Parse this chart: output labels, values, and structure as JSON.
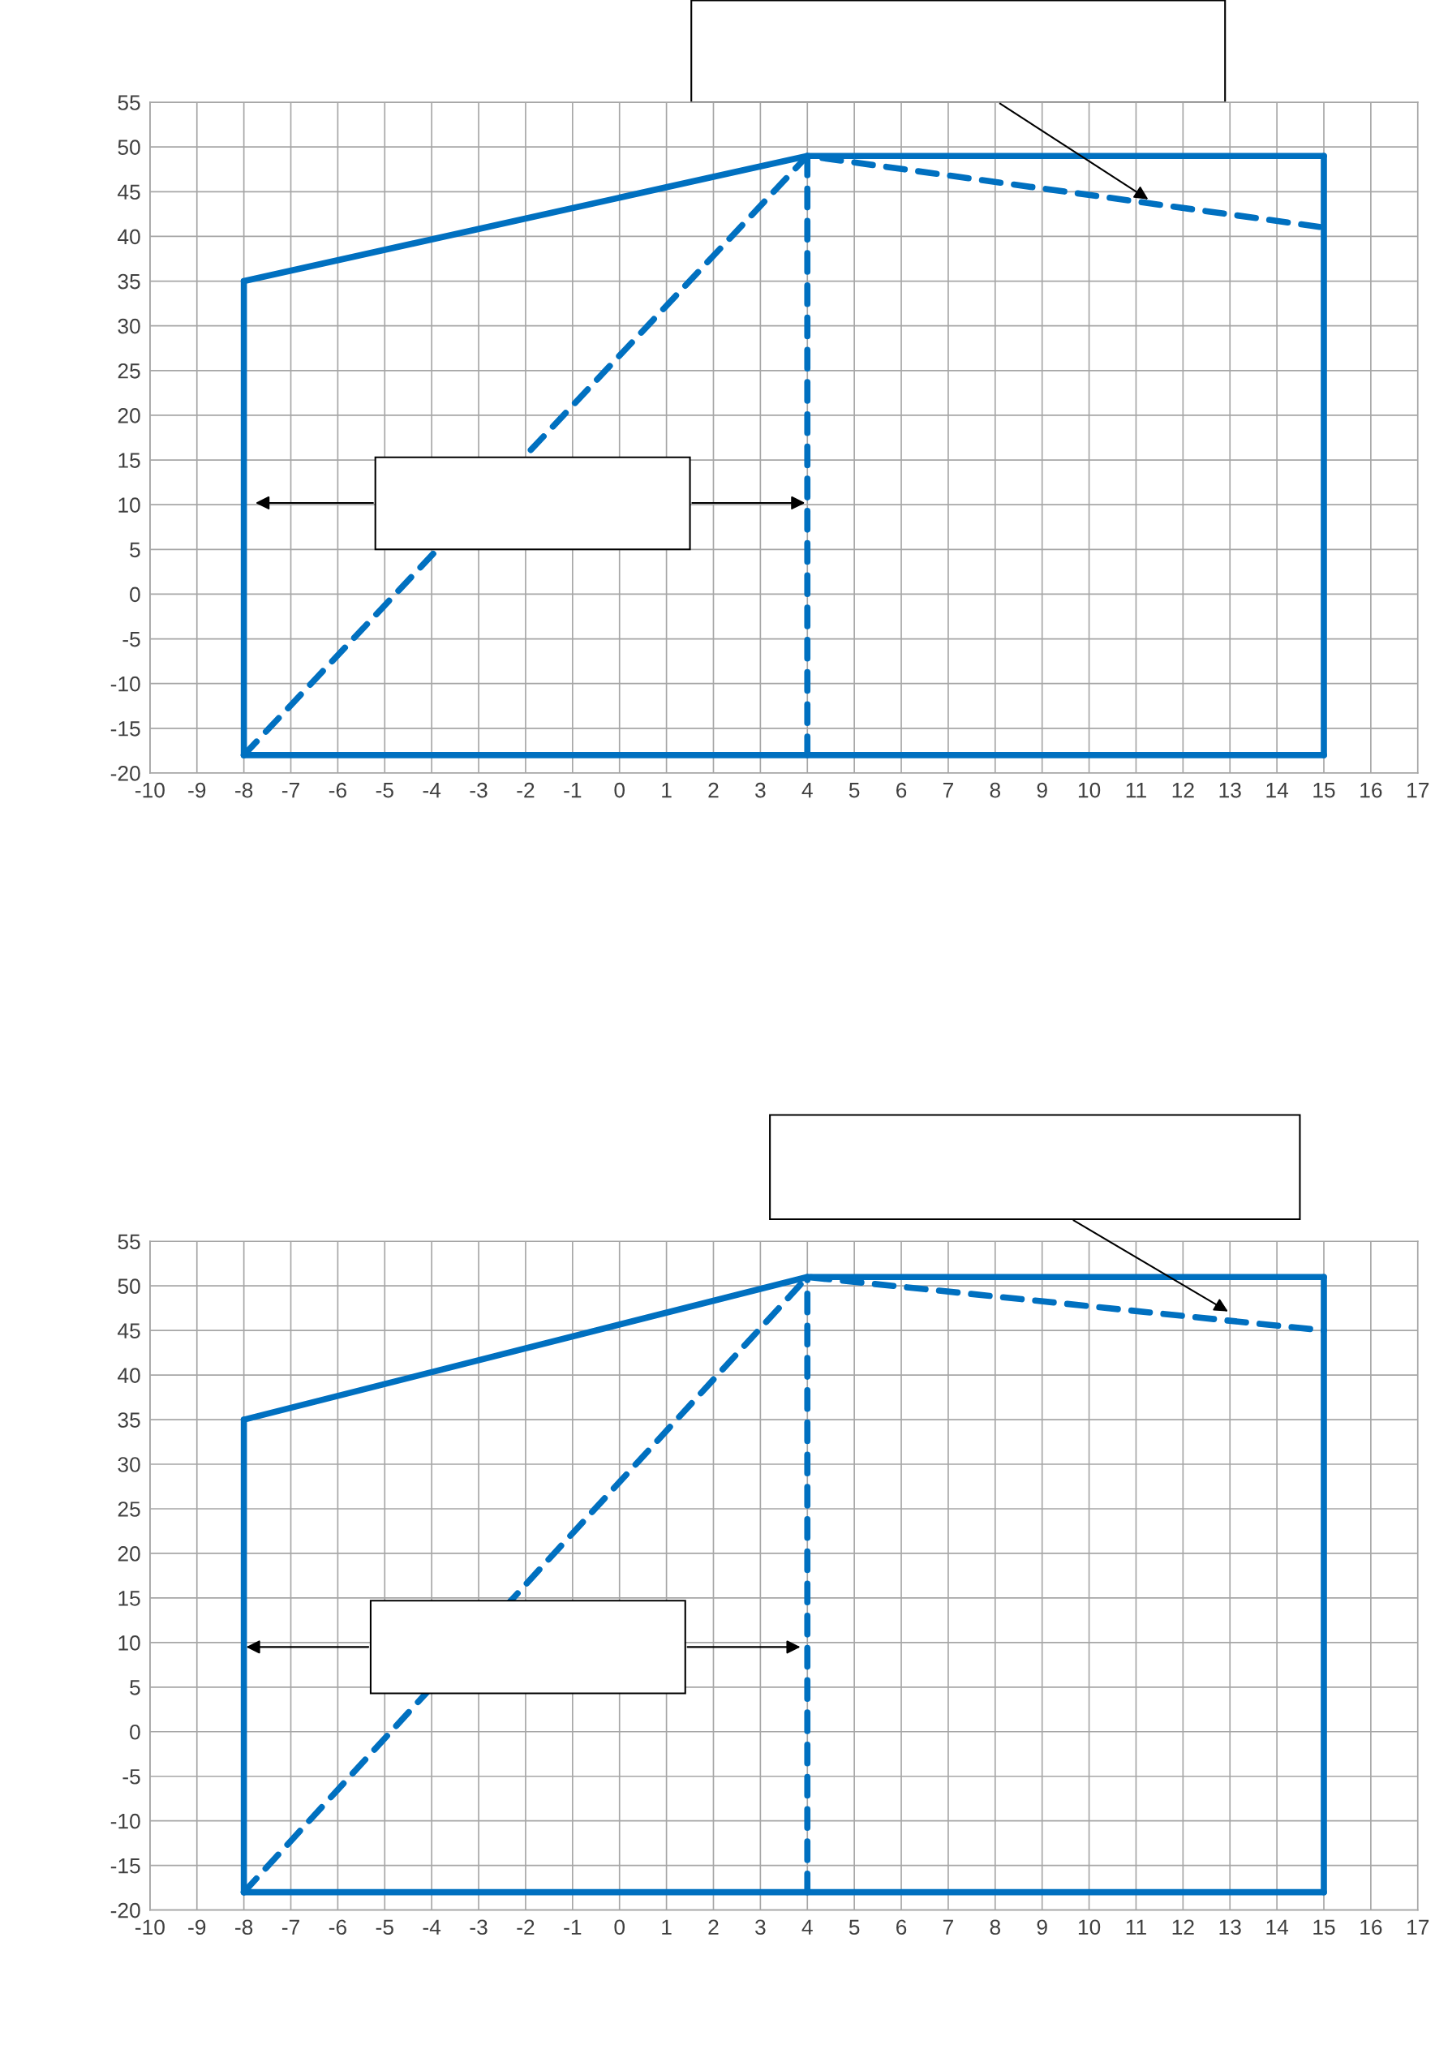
{
  "chart_data": [
    {
      "type": "line",
      "xlim": [
        -10,
        17
      ],
      "ylim": [
        -20,
        55
      ],
      "xticks": [
        -10,
        -9,
        -8,
        -7,
        -6,
        -5,
        -4,
        -3,
        -2,
        -1,
        0,
        1,
        2,
        3,
        4,
        5,
        6,
        7,
        8,
        9,
        10,
        11,
        12,
        13,
        14,
        15,
        16,
        17
      ],
      "yticks": [
        -20,
        -15,
        -10,
        -5,
        0,
        5,
        10,
        15,
        20,
        25,
        30,
        35,
        40,
        45,
        50,
        55
      ],
      "grid": true,
      "marker": "none",
      "series": [
        {
          "color": "#0070c0",
          "line_style": "solid",
          "x": [
            -8,
            4,
            15
          ],
          "values": [
            35,
            49,
            49
          ]
        },
        {
          "color": "#0070c0",
          "line_style": "solid",
          "x": [
            -8,
            15
          ],
          "values": [
            -18,
            -18
          ]
        },
        {
          "color": "#0070c0",
          "line_style": "dashed",
          "x": [
            -8,
            4,
            15
          ],
          "values": [
            -18,
            49,
            41
          ]
        }
      ],
      "ref_lines": [
        {
          "axis": "x",
          "value": -8,
          "color": "#0070c0",
          "line_style": "solid"
        },
        {
          "axis": "x",
          "value": 4,
          "color": "#0070c0",
          "line_style": "dashed"
        },
        {
          "axis": "x",
          "value": 15,
          "color": "#0070c0",
          "line_style": "solid"
        }
      ]
    },
    {
      "type": "line",
      "xlim": [
        -10,
        17
      ],
      "ylim": [
        -20,
        55
      ],
      "xticks": [
        -10,
        -9,
        -8,
        -7,
        -6,
        -5,
        -4,
        -3,
        -2,
        -1,
        0,
        1,
        2,
        3,
        4,
        5,
        6,
        7,
        8,
        9,
        10,
        11,
        12,
        13,
        14,
        15,
        16,
        17
      ],
      "yticks": [
        -20,
        -15,
        -10,
        -5,
        0,
        5,
        10,
        15,
        20,
        25,
        30,
        35,
        40,
        45,
        50,
        55
      ],
      "grid": true,
      "marker": "none",
      "series": [
        {
          "color": "#0070c0",
          "line_style": "solid",
          "x": [
            -8,
            4,
            15
          ],
          "values": [
            35,
            51,
            51
          ]
        },
        {
          "color": "#0070c0",
          "line_style": "solid",
          "x": [
            -8,
            15
          ],
          "values": [
            -18,
            -18
          ]
        },
        {
          "color": "#0070c0",
          "line_style": "dashed",
          "x": [
            -8,
            4,
            15
          ],
          "values": [
            -18,
            51,
            45
          ]
        }
      ],
      "ref_lines": [
        {
          "axis": "x",
          "value": -8,
          "color": "#0070c0",
          "line_style": "solid"
        },
        {
          "axis": "x",
          "value": 4,
          "color": "#0070c0",
          "line_style": "dashed"
        },
        {
          "axis": "x",
          "value": 15,
          "color": "#0070c0",
          "line_style": "solid"
        }
      ]
    }
  ]
}
